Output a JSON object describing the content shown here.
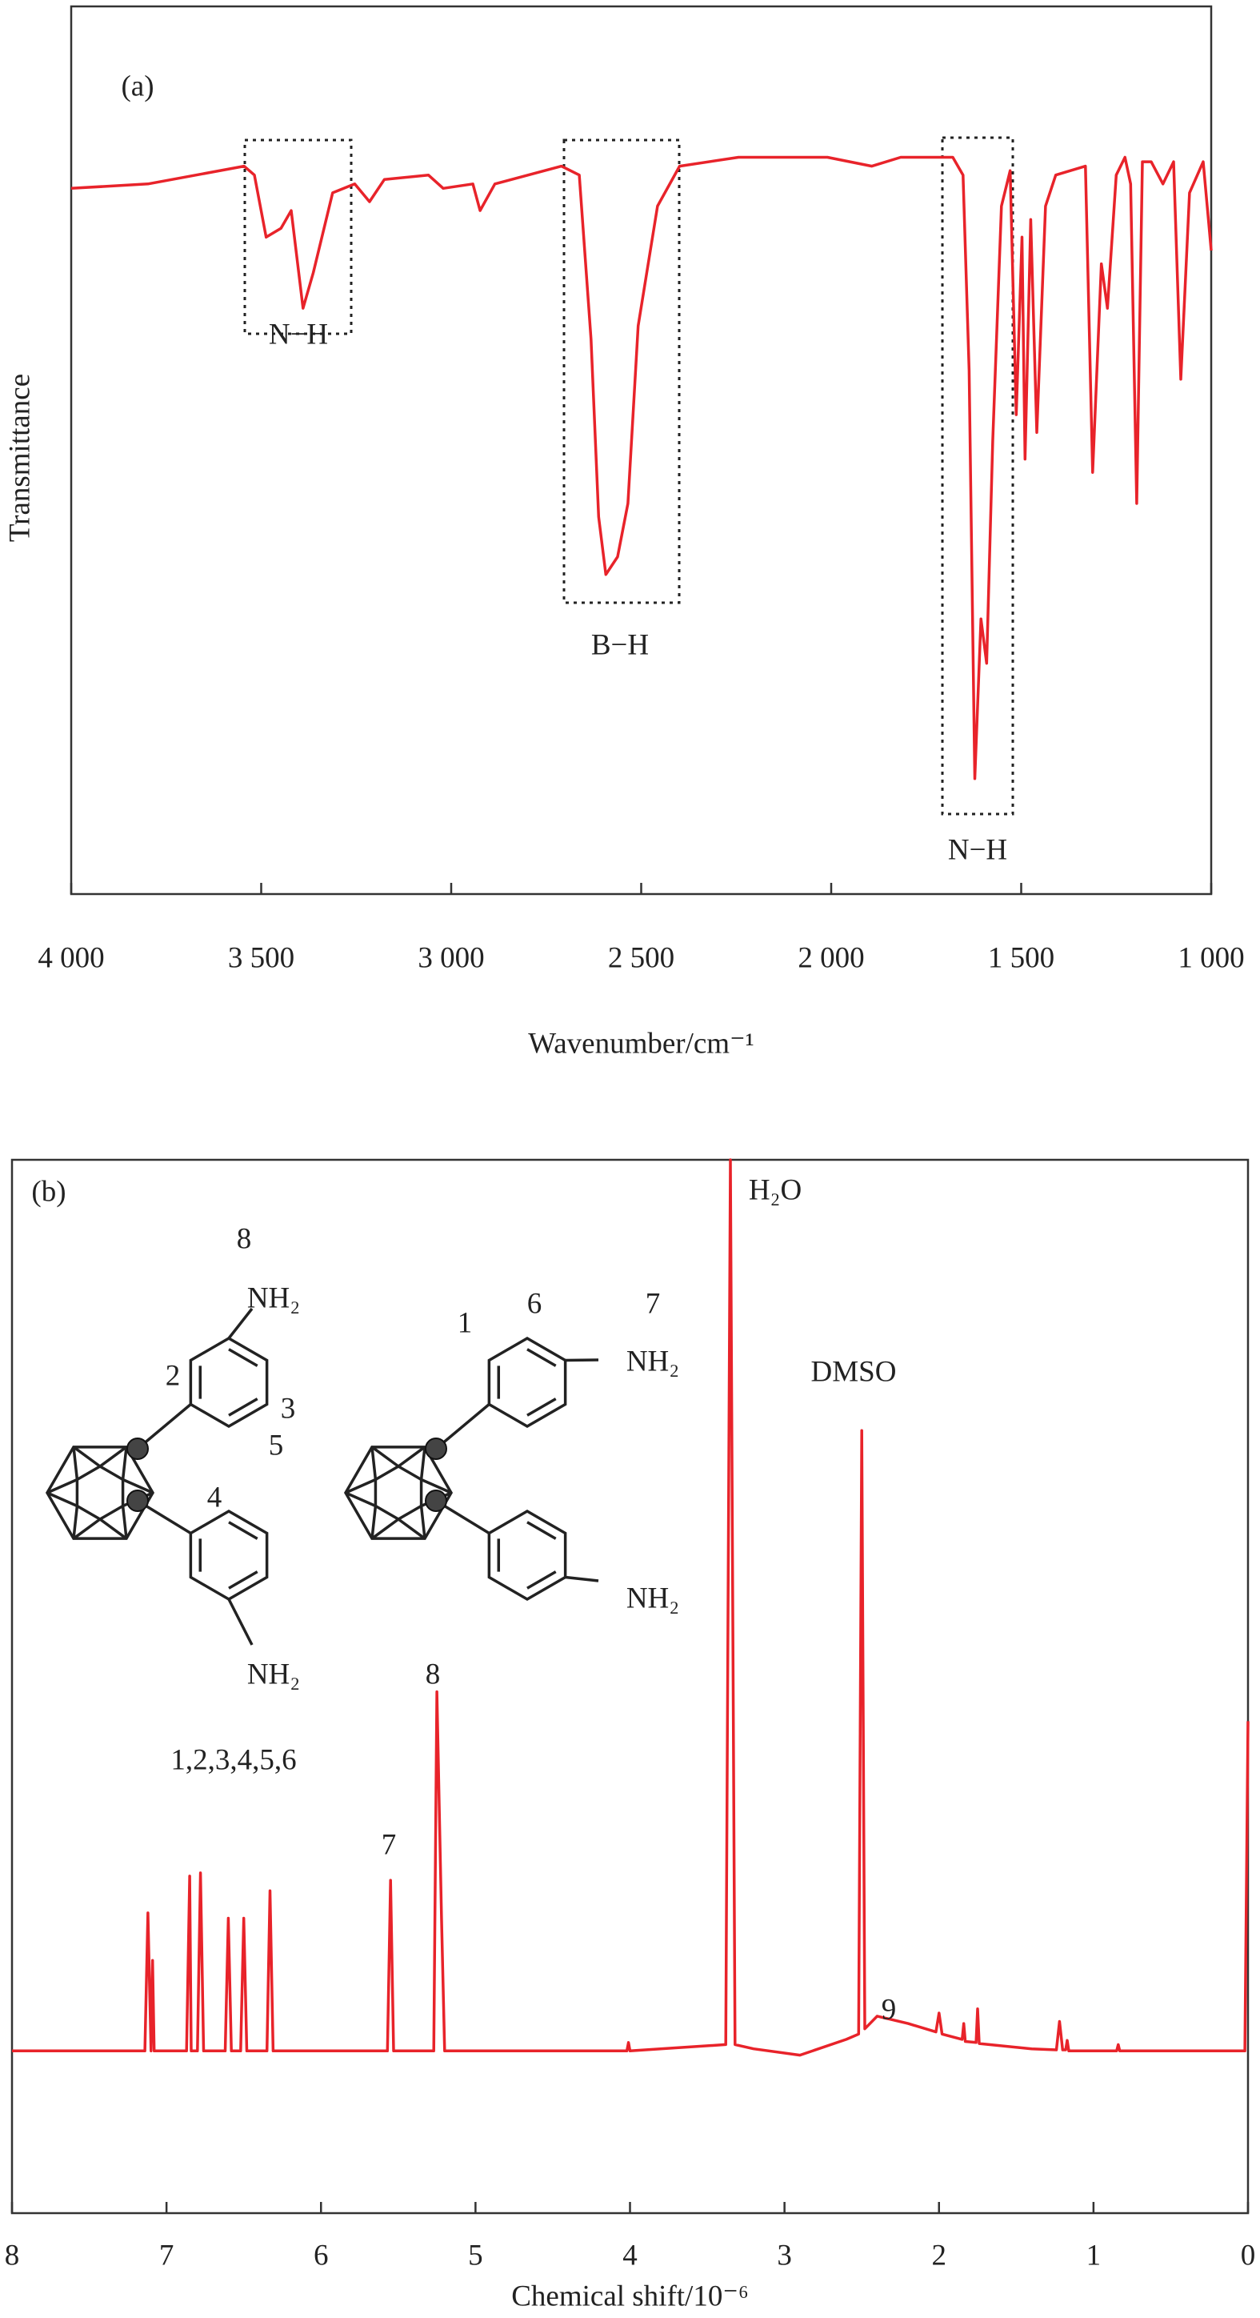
{
  "chart_data": [
    {
      "type": "line",
      "y_label": "Transmittance",
      "x_label": "Wavenumber/cm⁻¹",
      "color": "#e8232a",
      "annotations": [
        "(a)",
        "N−H",
        "B−H",
        "N−H"
      ],
      "xlim": [
        4000,
        1000
      ],
      "ylim": [
        0,
        100
      ],
      "xticks": [
        {
          "value": 4000,
          "label": "4 000"
        },
        {
          "value": 3500,
          "label": "3 500"
        },
        {
          "value": 3000,
          "label": "3 000"
        },
        {
          "value": 2500,
          "label": "2 500"
        },
        {
          "value": 2000,
          "label": "2 000"
        },
        {
          "value": 1500,
          "label": "1 500"
        },
        {
          "value": 1000,
          "label": "1 000"
        }
      ],
      "x": [
        4000,
        3798,
        3545,
        3518,
        3487,
        3448,
        3421,
        3390,
        3363,
        3312,
        3254,
        3215,
        3176,
        3060,
        3021,
        2943,
        2924,
        2885,
        2710,
        2663,
        2632,
        2612,
        2593,
        2562,
        2535,
        2508,
        2457,
        2399,
        2244,
        2010,
        1893,
        1817,
        1680,
        1653,
        1637,
        1622,
        1606,
        1591,
        1575,
        1552,
        1529,
        1513,
        1498,
        1490,
        1475,
        1459,
        1436,
        1409,
        1331,
        1312,
        1289,
        1273,
        1250,
        1227,
        1212,
        1196,
        1181,
        1158,
        1127,
        1099,
        1080,
        1057,
        1021,
        1000
      ],
      "values": [
        79.5,
        80,
        82,
        81,
        74,
        75,
        77,
        66,
        70,
        79,
        80,
        78,
        80.5,
        81,
        79.5,
        80,
        77,
        80,
        82,
        81,
        62.5,
        42.5,
        36,
        38,
        44,
        64,
        77.5,
        82,
        83,
        83,
        82,
        83,
        83,
        81,
        59,
        13,
        31,
        26,
        51,
        77.5,
        81.5,
        54,
        74,
        49,
        76,
        52,
        77.5,
        81,
        82,
        47.5,
        71,
        66,
        81,
        83,
        80,
        44,
        82.5,
        82.5,
        80,
        82.5,
        58,
        79,
        82.5,
        72.5
      ]
    },
    {
      "type": "line",
      "x_label": "Chemical shift/10⁻⁶",
      "color": "#e8232a",
      "annotations": [
        "(b)",
        "H₂O",
        "DMSO",
        "8",
        "1,2,3,4,5,6",
        "7",
        "9"
      ],
      "structure_labels": [
        "8",
        "NH₂",
        "2",
        "3",
        "5",
        "4",
        "NH₂",
        "6",
        "7",
        "1",
        "NH₂",
        "NH₂"
      ],
      "xlim": [
        8,
        0
      ],
      "ylim": [
        0,
        100
      ],
      "xticks": [
        8,
        7,
        6,
        5,
        4,
        3,
        2,
        1,
        0
      ],
      "x": [
        8.0,
        7.14,
        7.12,
        7.1,
        7.09,
        7.08,
        6.87,
        6.85,
        6.84,
        6.8,
        6.78,
        6.76,
        6.62,
        6.6,
        6.58,
        6.52,
        6.5,
        6.48,
        6.35,
        6.33,
        6.31,
        5.57,
        5.55,
        5.53,
        5.27,
        5.25,
        5.22,
        5.2,
        4.02,
        4.01,
        4.0,
        3.38,
        3.35,
        3.32,
        3.2,
        2.9,
        2.6,
        2.52,
        2.5,
        2.48,
        2.4,
        2.2,
        2.02,
        2.0,
        1.98,
        1.85,
        1.84,
        1.83,
        1.76,
        1.75,
        1.74,
        1.4,
        1.24,
        1.22,
        1.2,
        1.18,
        1.17,
        1.16,
        0.85,
        0.84,
        0.83,
        0.02,
        0.0
      ],
      "values": [
        15.4,
        15.4,
        28.5,
        15.4,
        24,
        15.4,
        15.4,
        32,
        15.4,
        15.4,
        32.3,
        15.4,
        15.4,
        28,
        15.4,
        15.4,
        28,
        15.4,
        15.4,
        30.6,
        15.4,
        15.4,
        31.6,
        15.4,
        15.4,
        49.5,
        28,
        15.4,
        15.4,
        16.2,
        15.4,
        16,
        100,
        16,
        15.6,
        15.0,
        16.5,
        17,
        74.3,
        17.5,
        18.7,
        18,
        17.2,
        19,
        17,
        16.5,
        18,
        16.3,
        16.2,
        19.4,
        16.1,
        15.6,
        15.5,
        18.2,
        15.5,
        15.5,
        16.4,
        15.4,
        15.4,
        16,
        15.4,
        15.4,
        46.7
      ]
    }
  ]
}
